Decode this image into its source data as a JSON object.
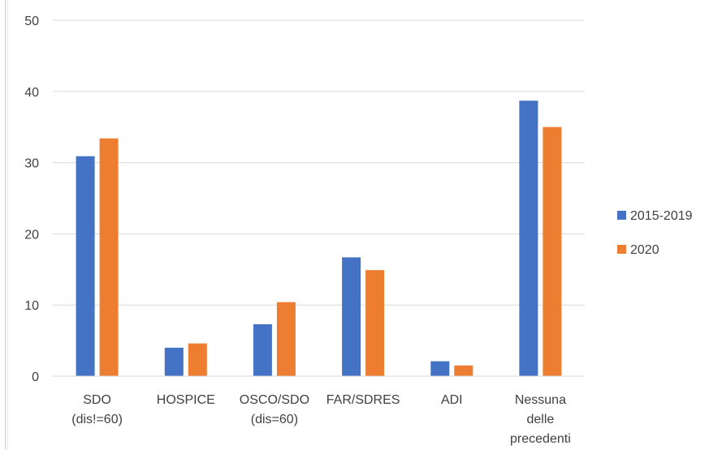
{
  "chart_data": {
    "type": "bar",
    "title": "",
    "xlabel": "",
    "ylabel": "",
    "ylim": [
      0,
      50
    ],
    "yticks": [
      0,
      10,
      20,
      30,
      40,
      50
    ],
    "grid": true,
    "legend_position": "right",
    "categories": [
      [
        "SDO",
        "(dis!=60)"
      ],
      [
        "HOSPICE"
      ],
      [
        "OSCO/SDO",
        "(dis=60)"
      ],
      [
        "FAR/SDRES"
      ],
      [
        "ADI"
      ],
      [
        "Nessuna",
        "delle",
        "precedenti"
      ]
    ],
    "series": [
      {
        "name": "2015-2019",
        "color": "#4472C4",
        "values": [
          30.9,
          4.0,
          7.3,
          16.7,
          2.1,
          38.7
        ]
      },
      {
        "name": "2020",
        "color": "#ED7D31",
        "values": [
          33.4,
          4.6,
          10.4,
          14.9,
          1.5,
          35.0
        ]
      }
    ]
  }
}
